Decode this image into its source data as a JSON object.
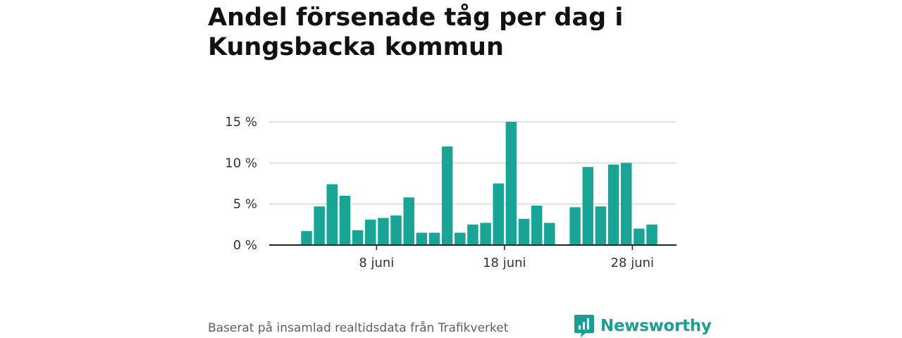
{
  "title": "Andel försenade tåg per dag i Kungsbacka kommun",
  "footer": {
    "source": "Baserat på insamlad realtidsdata från Trafikverket",
    "brand": "Newsworthy",
    "brand_icon": "chart-bubble-icon"
  },
  "colors": {
    "bar": "#18a596",
    "grid": "#d9d9d9",
    "axis": "#222222",
    "brand": "#1a9e96"
  },
  "chart_data": {
    "type": "bar",
    "title": "Andel försenade tåg per dag i Kungsbacka kommun",
    "xlabel": "",
    "ylabel": "",
    "x_tick_labels": [
      "8 juni",
      "18 juni",
      "28 juni"
    ],
    "y_tick_labels": [
      "0 %",
      "5 %",
      "10 %",
      "15 %"
    ],
    "y_ticks": [
      0,
      5,
      10,
      15
    ],
    "ylim": [
      0,
      15
    ],
    "grid": true,
    "series": [
      {
        "x": [
          1,
          2,
          3,
          4,
          5,
          6,
          7,
          8,
          9,
          10,
          11,
          12,
          13,
          14,
          15,
          16,
          17,
          18,
          19,
          20,
          21,
          22,
          23,
          24,
          25,
          26,
          27,
          28,
          29,
          30
        ],
        "values": [
          null,
          null,
          1.7,
          4.7,
          7.4,
          6.0,
          1.8,
          3.1,
          3.3,
          3.6,
          5.8,
          1.5,
          1.5,
          12.0,
          1.5,
          2.5,
          2.7,
          7.5,
          15.0,
          3.2,
          4.8,
          2.7,
          null,
          4.6,
          9.5,
          4.7,
          9.8,
          10.0,
          2.0,
          2.5
        ]
      }
    ]
  }
}
